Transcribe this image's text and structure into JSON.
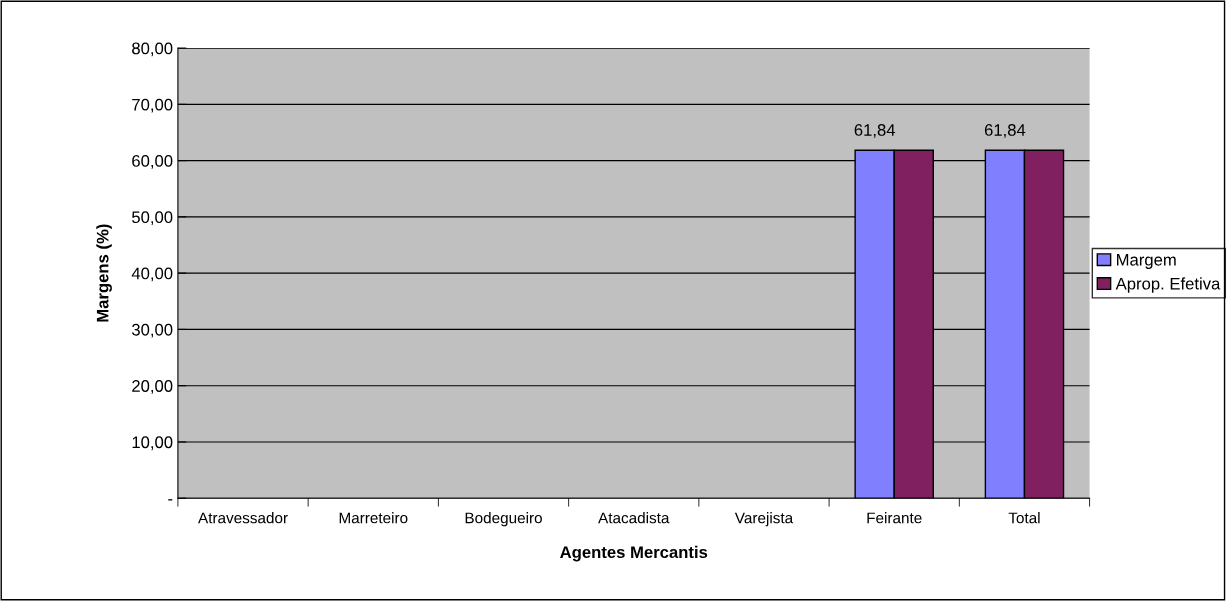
{
  "chart_data": {
    "type": "bar",
    "xlabel": "Agentes Mercantis",
    "ylabel": "Margens (%)",
    "categories": [
      "Atravessador",
      "Marreteiro",
      "Bodegueiro",
      "Atacadista",
      "Varejista",
      "Feirante",
      "Total"
    ],
    "series": [
      {
        "name": "Margem",
        "color": "#8080ff",
        "values": [
          null,
          null,
          null,
          null,
          null,
          61.84,
          61.84
        ],
        "value_labels": [
          null,
          null,
          null,
          null,
          null,
          "61,84",
          "61,84"
        ]
      },
      {
        "name": "Aprop. Efetiva",
        "color": "#802060",
        "values": [
          null,
          null,
          null,
          null,
          null,
          61.84,
          61.84
        ]
      }
    ],
    "ylim": [
      0,
      80
    ],
    "yticks": [
      {
        "value": 0,
        "label": "-"
      },
      {
        "value": 10,
        "label": "10,00"
      },
      {
        "value": 20,
        "label": "20,00"
      },
      {
        "value": 30,
        "label": "30,00"
      },
      {
        "value": 40,
        "label": "40,00"
      },
      {
        "value": 50,
        "label": "50,00"
      },
      {
        "value": 60,
        "label": "60,00"
      },
      {
        "value": 70,
        "label": "70,00"
      },
      {
        "value": 80,
        "label": "80,00"
      }
    ],
    "grid": "y",
    "legend": "right"
  }
}
